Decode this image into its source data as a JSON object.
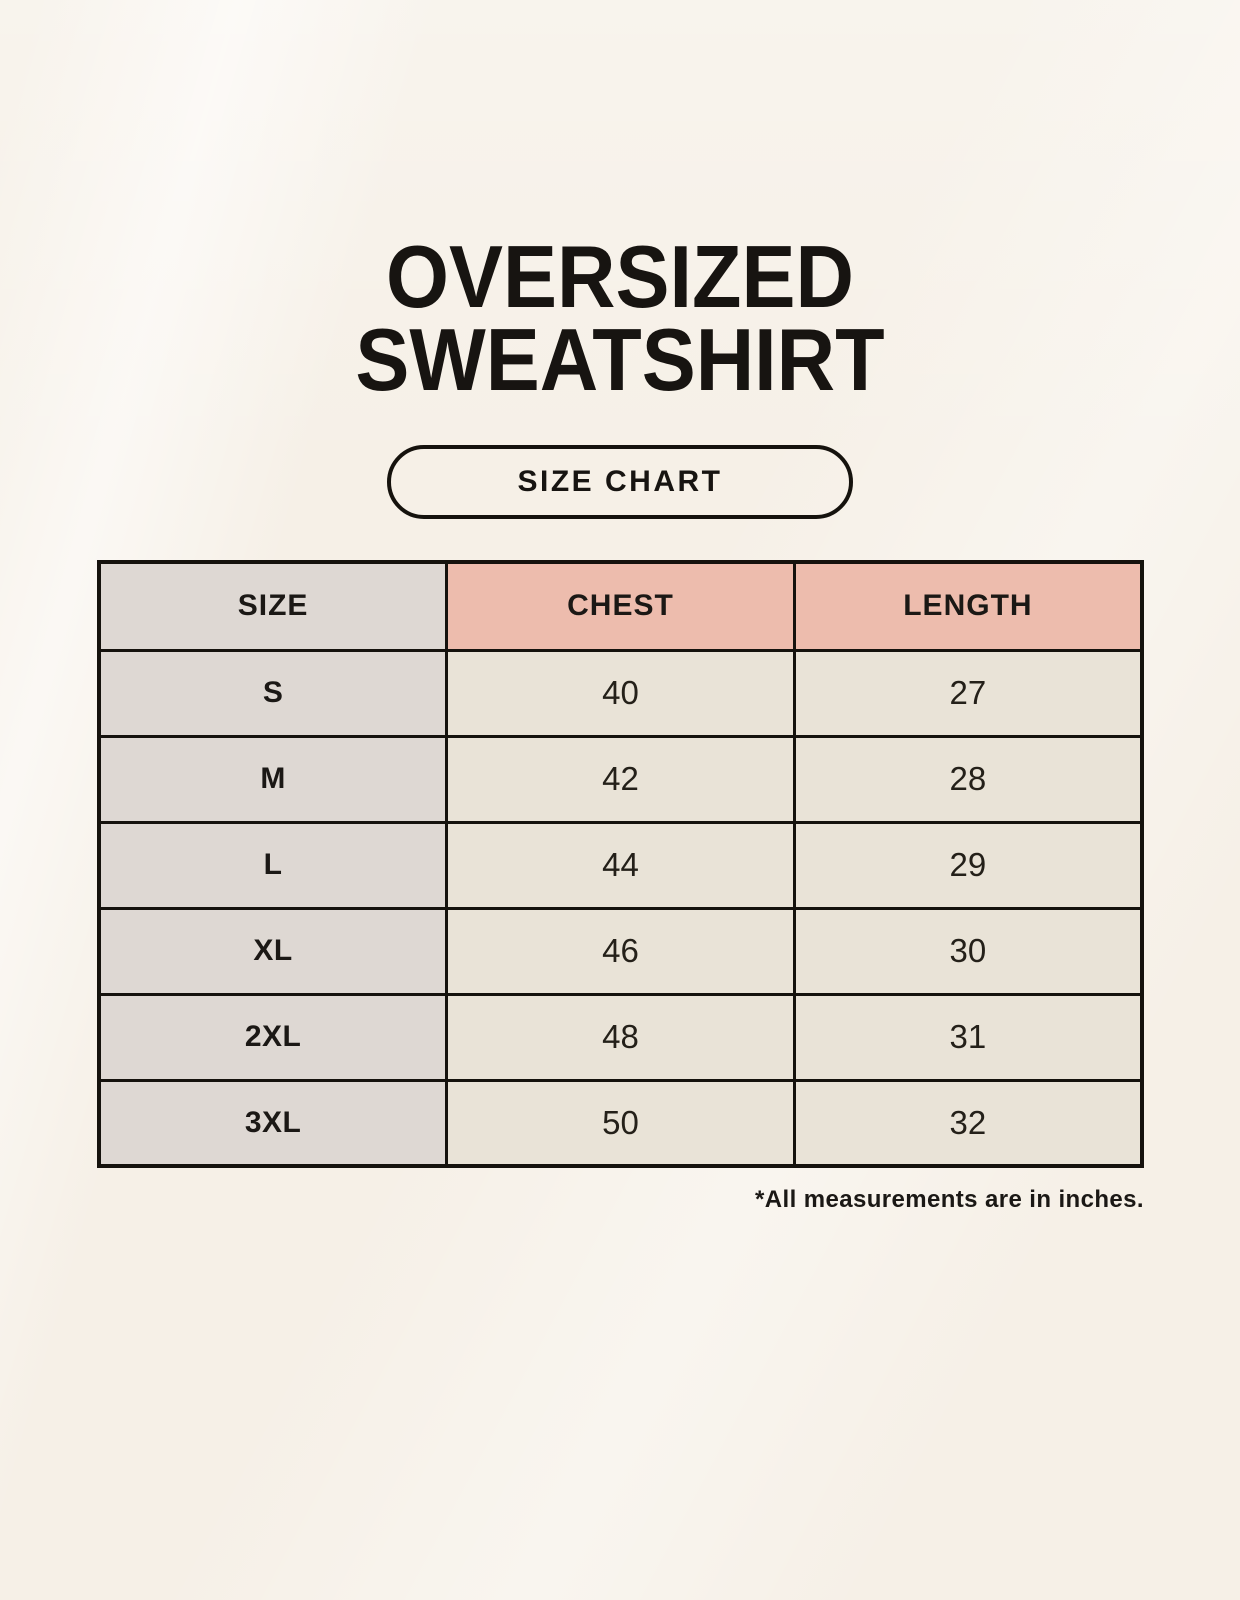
{
  "title": {
    "line1": "OVERSIZED",
    "line2": "SWEATSHIRT"
  },
  "badge": {
    "label": "SIZE CHART"
  },
  "size_chart": {
    "columns": [
      "SIZE",
      "CHEST",
      "LENGTH"
    ],
    "rows": [
      {
        "size": "S",
        "chest": "40",
        "length": "27"
      },
      {
        "size": "M",
        "chest": "42",
        "length": "28"
      },
      {
        "size": "L",
        "chest": "44",
        "length": "29"
      },
      {
        "size": "XL",
        "chest": "46",
        "length": "30"
      },
      {
        "size": "2XL",
        "chest": "48",
        "length": "31"
      },
      {
        "size": "3XL",
        "chest": "50",
        "length": "32"
      }
    ],
    "footnote": "*All measurements are in inches.",
    "units": "inches"
  },
  "colors": {
    "background": "#F6F0E7",
    "header_pink": "#EDBCAD",
    "column_gray": "#DED8D3",
    "cell_cream": "#E9E3D7",
    "border_black": "#15120D",
    "text": "#1B1815"
  }
}
